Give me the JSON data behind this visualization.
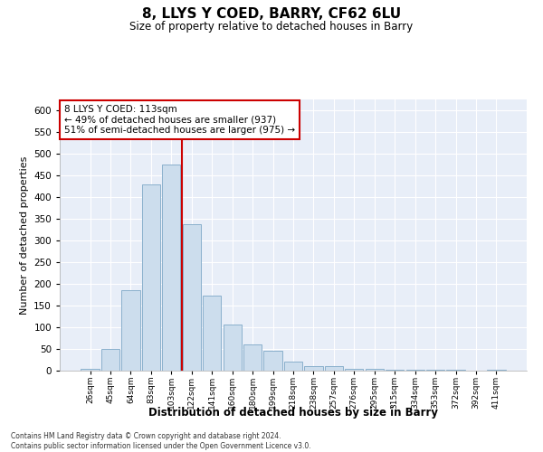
{
  "title": "8, LLYS Y COED, BARRY, CF62 6LU",
  "subtitle": "Size of property relative to detached houses in Barry",
  "xlabel": "Distribution of detached houses by size in Barry",
  "ylabel": "Number of detached properties",
  "bar_color": "#ccdded",
  "bar_edge_color": "#8ab0cc",
  "background_color": "#e8eef8",
  "grid_color": "#ffffff",
  "categories": [
    "26sqm",
    "45sqm",
    "64sqm",
    "83sqm",
    "103sqm",
    "122sqm",
    "141sqm",
    "160sqm",
    "180sqm",
    "199sqm",
    "218sqm",
    "238sqm",
    "257sqm",
    "276sqm",
    "295sqm",
    "315sqm",
    "334sqm",
    "353sqm",
    "372sqm",
    "392sqm",
    "411sqm"
  ],
  "values": [
    5,
    50,
    185,
    430,
    475,
    338,
    172,
    107,
    60,
    45,
    20,
    10,
    10,
    5,
    5,
    3,
    2,
    2,
    2,
    1,
    2
  ],
  "ylim": [
    0,
    625
  ],
  "yticks": [
    0,
    50,
    100,
    150,
    200,
    250,
    300,
    350,
    400,
    450,
    500,
    550,
    600
  ],
  "red_line_x": 4.5,
  "annotation_line1": "8 LLYS Y COED: 113sqm",
  "annotation_line2": "← 49% of detached houses are smaller (937)",
  "annotation_line3": "51% of semi-detached houses are larger (975) →",
  "annotation_box_color": "#ffffff",
  "annotation_box_edge_color": "#cc0000",
  "footnote": "Contains HM Land Registry data © Crown copyright and database right 2024.\nContains public sector information licensed under the Open Government Licence v3.0.",
  "red_line_color": "#cc0000"
}
